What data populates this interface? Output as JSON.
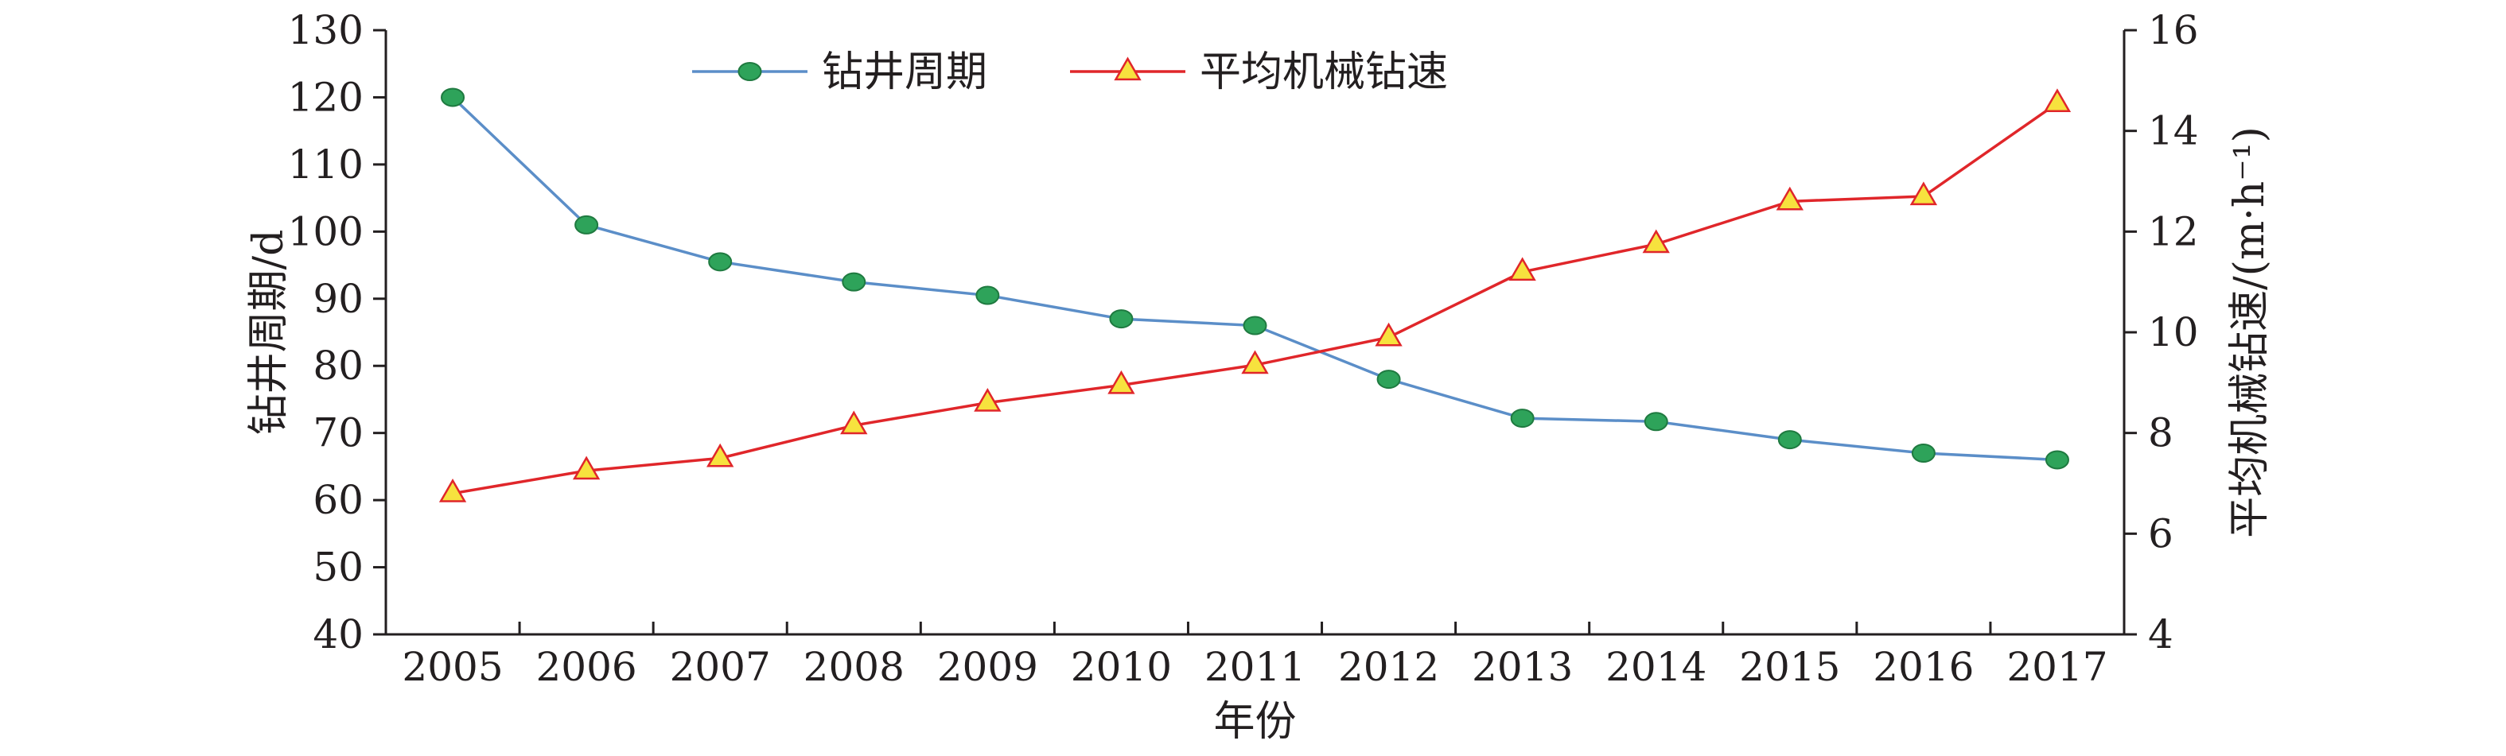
{
  "chart_data": {
    "type": "line",
    "title": "",
    "xlabel": "年份",
    "ylabel_left": "钻井周期/d",
    "ylabel_right": "平均机械钻速/(m·h⁻¹)",
    "categories": [
      "2005",
      "2006",
      "2007",
      "2008",
      "2009",
      "2010",
      "2011",
      "2012",
      "2013",
      "2014",
      "2015",
      "2016",
      "2017"
    ],
    "y_left_range": [
      40,
      130
    ],
    "y_left_ticks": [
      40,
      50,
      60,
      70,
      80,
      90,
      100,
      110,
      120,
      130
    ],
    "y_right_range": [
      4,
      16
    ],
    "y_right_ticks": [
      4,
      6,
      8,
      10,
      12,
      14,
      16
    ],
    "grid": false,
    "legend_position": "top-left",
    "series": [
      {
        "name": "钻井周期",
        "axis": "left",
        "color": "#5b8ec8",
        "marker": "circle",
        "marker_fill": "#2ea35a",
        "values": [
          120,
          101,
          95.5,
          92.5,
          90.5,
          87,
          86,
          78,
          72.2,
          71.7,
          69,
          67,
          66
        ]
      },
      {
        "name": "平均机械钻速",
        "axis": "right",
        "color": "#e0262a",
        "marker": "triangle",
        "marker_fill": "#f7e23e",
        "values": [
          6.8,
          7.25,
          7.5,
          8.15,
          8.6,
          8.95,
          9.35,
          9.9,
          11.2,
          11.75,
          12.6,
          12.7,
          14.55
        ]
      }
    ]
  }
}
